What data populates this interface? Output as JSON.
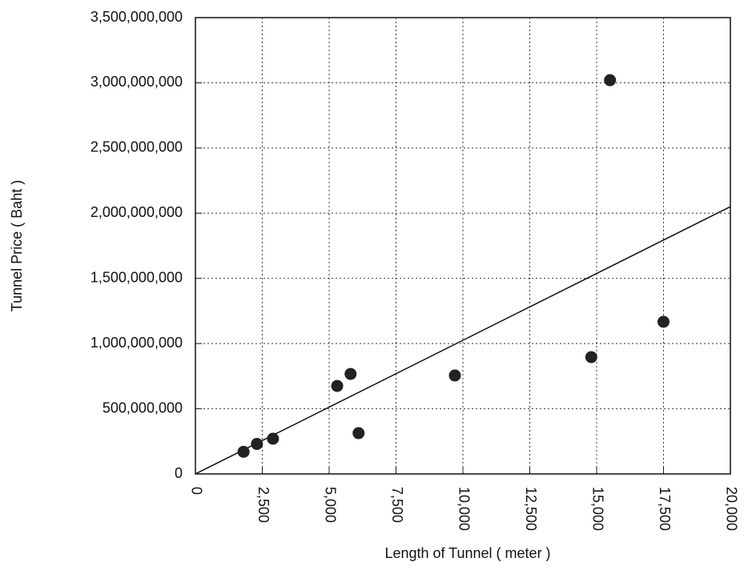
{
  "chart_data": {
    "type": "scatter",
    "x_label": "Length of Tunnel ( meter )",
    "y_label": "Tunnel Price ( Baht )",
    "x": [
      1800,
      2300,
      2900,
      5300,
      5800,
      6100,
      9700,
      14800,
      15500,
      17500
    ],
    "values": [
      170000000,
      230000000,
      270000000,
      675000000,
      767000000,
      313000000,
      755000000,
      896000000,
      3020000000,
      1167000000
    ],
    "color": "#222222",
    "trendline": {
      "x": [
        0,
        20000
      ],
      "values": [
        0,
        2050000000
      ],
      "color": "#111111"
    },
    "xlim": [
      0,
      20000
    ],
    "ylim": [
      0,
      3500000000
    ],
    "xticks": [
      0,
      {
        "value": 2500,
        "label": "2,500"
      },
      {
        "value": 5000,
        "label": "5,000"
      },
      {
        "value": 7500,
        "label": "7,500"
      },
      {
        "value": 10000,
        "label": "10,000"
      },
      {
        "value": 12500,
        "label": "12,500"
      },
      {
        "value": 15000,
        "label": "15,000"
      },
      {
        "value": 17500,
        "label": "17,500"
      },
      {
        "value": 20000,
        "label": "20,000"
      }
    ],
    "yticks": [
      0,
      {
        "value": 500000000,
        "label": "500,000,000"
      },
      {
        "value": 1000000000,
        "label": "1,000,000,000"
      },
      {
        "value": 1500000000,
        "label": "1,500,000,000"
      },
      {
        "value": 2000000000,
        "label": "2,000,000,000"
      },
      {
        "value": 2500000000,
        "label": "2,500,000,000"
      },
      {
        "value": 3000000000,
        "label": "3,000,000,000"
      },
      {
        "value": 3500000000,
        "label": "3,500,000,000"
      }
    ],
    "grid": true
  }
}
